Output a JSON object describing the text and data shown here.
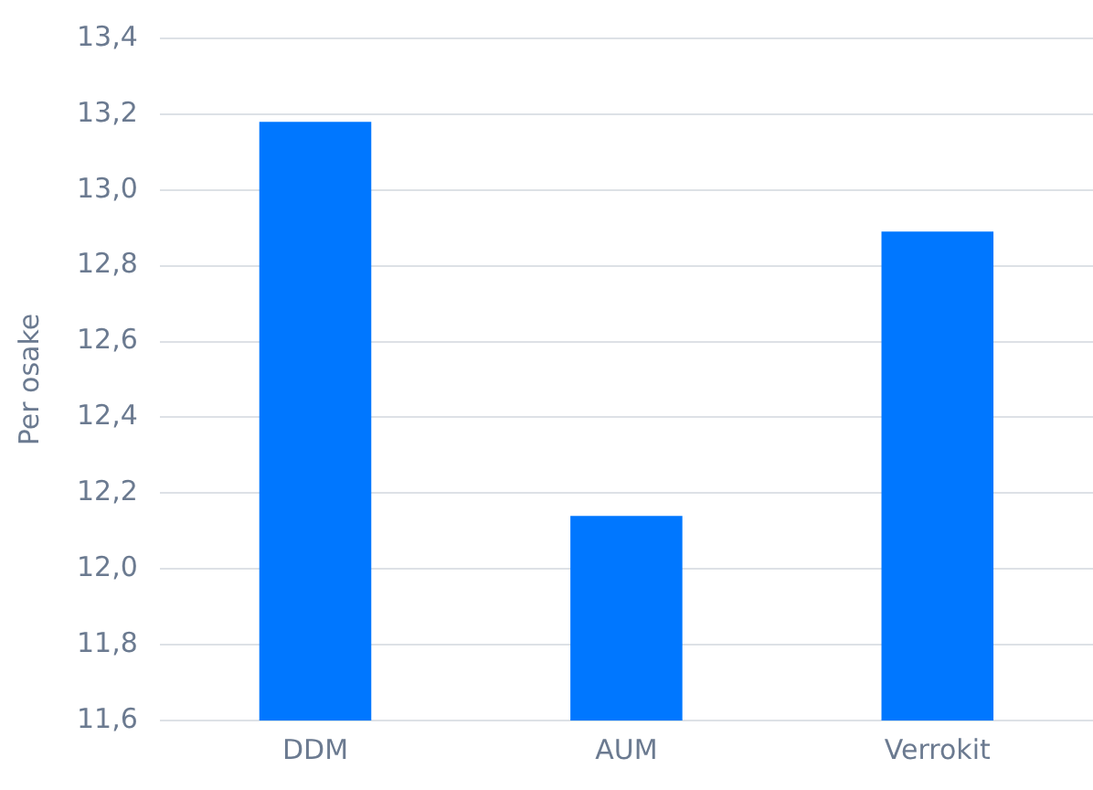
{
  "chart_data": {
    "type": "bar",
    "ylabel": "Per osake",
    "categories": [
      "DDM",
      "AUM",
      "Verrokit"
    ],
    "values": [
      13.18,
      12.14,
      12.89
    ],
    "color": "#0077ff",
    "ylim": [
      11.6,
      13.4
    ],
    "yticks": [
      {
        "value": 11.6,
        "label": "11,6"
      },
      {
        "value": 11.8,
        "label": "11,8"
      },
      {
        "value": 12.0,
        "label": "12,0"
      },
      {
        "value": 12.2,
        "label": "12,2"
      },
      {
        "value": 12.4,
        "label": "12,4"
      },
      {
        "value": 12.6,
        "label": "12,6"
      },
      {
        "value": 12.8,
        "label": "12,8"
      },
      {
        "value": 13.0,
        "label": "13,0"
      },
      {
        "value": 13.2,
        "label": "13,2"
      },
      {
        "value": 13.4,
        "label": "13,4"
      }
    ],
    "grid": "y"
  }
}
